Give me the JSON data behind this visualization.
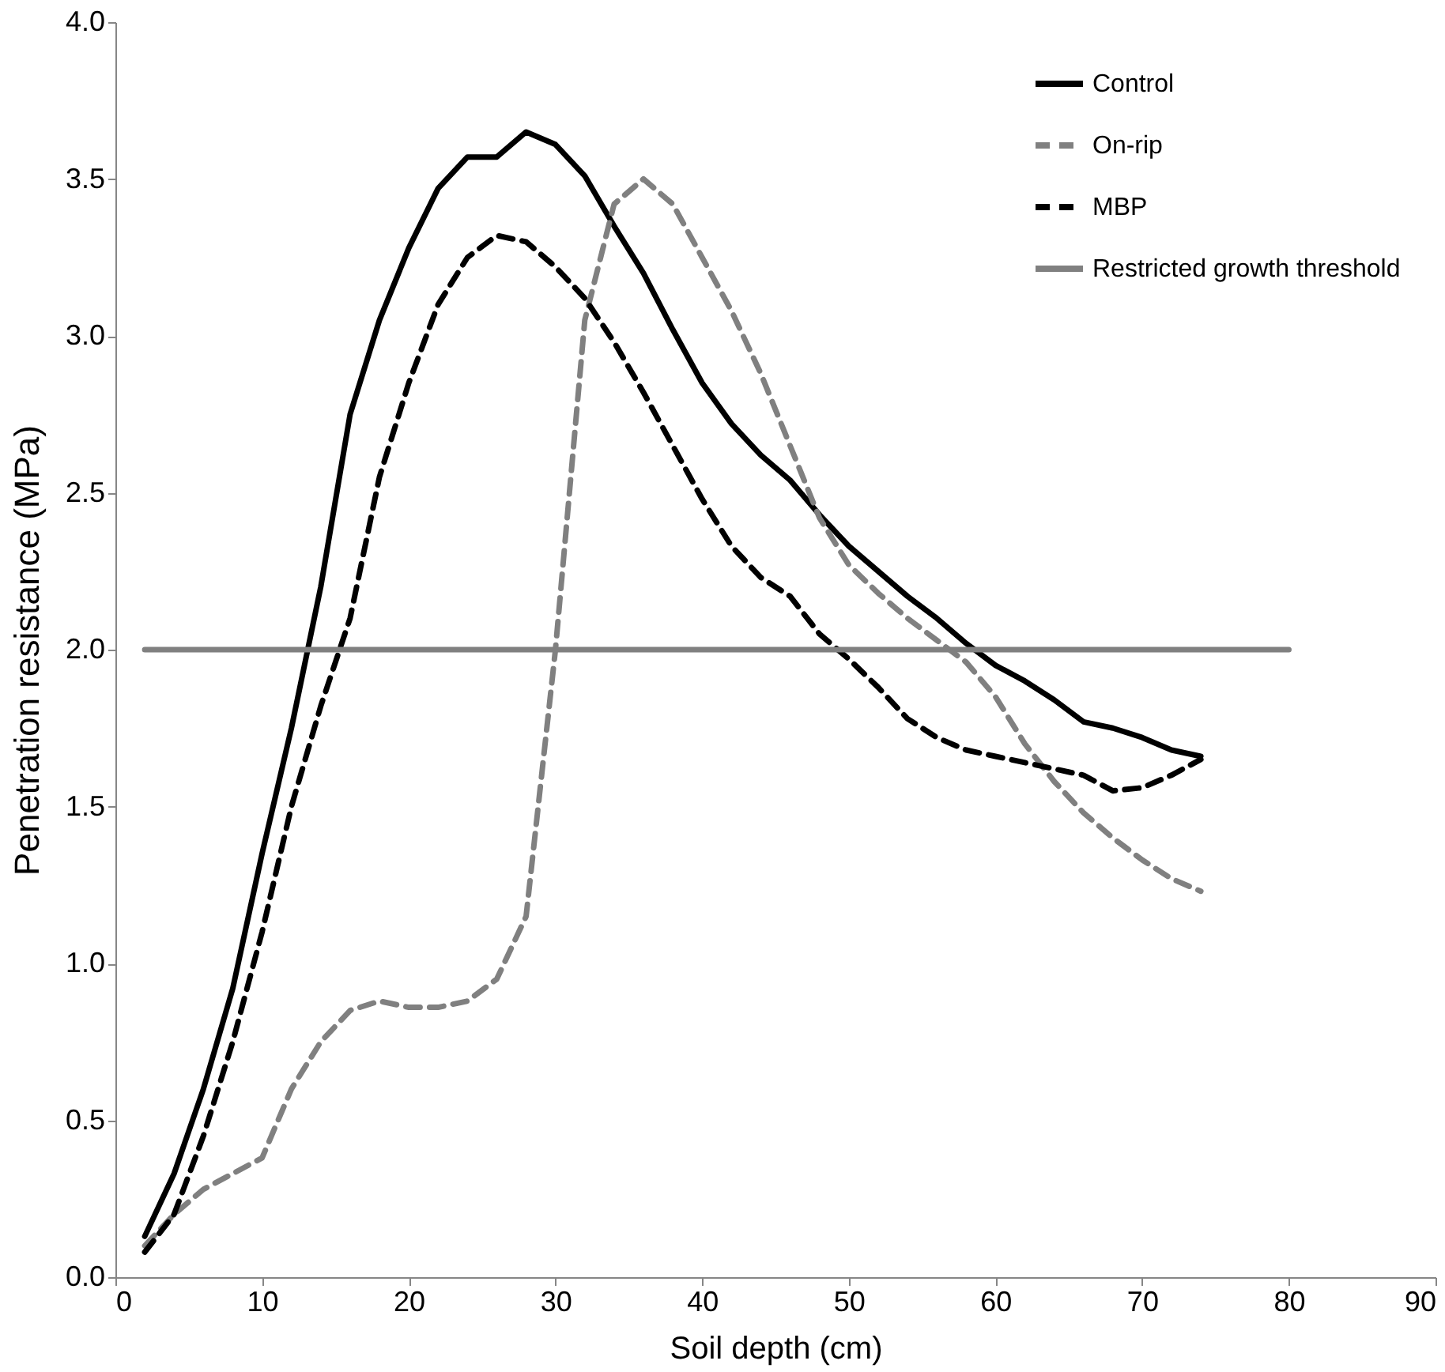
{
  "chart_data": {
    "type": "line",
    "xlabel": "Soil depth (cm)",
    "ylabel": "Penetration resistance (MPa)",
    "x": [
      2,
      4,
      6,
      8,
      10,
      12,
      14,
      16,
      18,
      20,
      22,
      24,
      26,
      28,
      30,
      32,
      34,
      36,
      38,
      40,
      42,
      44,
      46,
      48,
      50,
      52,
      54,
      56,
      58,
      60,
      62,
      64,
      66,
      68,
      70,
      72,
      74
    ],
    "series": [
      {
        "name": "Control",
        "color": "#000000",
        "line_style": "solid",
        "values": [
          0.13,
          0.33,
          0.6,
          0.92,
          1.35,
          1.75,
          2.2,
          2.75,
          3.05,
          3.28,
          3.47,
          3.57,
          3.57,
          3.65,
          3.61,
          3.51,
          3.35,
          3.2,
          3.02,
          2.85,
          2.72,
          2.62,
          2.54,
          2.43,
          2.33,
          2.25,
          2.17,
          2.1,
          2.02,
          1.95,
          1.9,
          1.84,
          1.77,
          1.75,
          1.72,
          1.68,
          1.66
        ]
      },
      {
        "name": "On-rip",
        "color": "#808080",
        "line_style": "dashed",
        "values": [
          0.1,
          0.2,
          0.28,
          0.33,
          0.38,
          0.6,
          0.75,
          0.85,
          0.88,
          0.86,
          0.86,
          0.88,
          0.95,
          1.15,
          2.0,
          3.05,
          3.42,
          3.5,
          3.42,
          3.25,
          3.08,
          2.88,
          2.65,
          2.42,
          2.27,
          2.18,
          2.1,
          2.03,
          1.96,
          1.85,
          1.7,
          1.58,
          1.48,
          1.4,
          1.33,
          1.27,
          1.23
        ]
      },
      {
        "name": "MBP",
        "color": "#000000",
        "line_style": "dashed",
        "values": [
          0.08,
          0.2,
          0.45,
          0.75,
          1.1,
          1.5,
          1.82,
          2.1,
          2.55,
          2.85,
          3.1,
          3.25,
          3.32,
          3.3,
          3.22,
          3.12,
          2.98,
          2.82,
          2.65,
          2.48,
          2.33,
          2.23,
          2.17,
          2.05,
          1.97,
          1.88,
          1.78,
          1.72,
          1.68,
          1.66,
          1.64,
          1.62,
          1.6,
          1.55,
          1.56,
          1.6,
          1.65
        ]
      },
      {
        "name": "Restricted growth threshold",
        "color": "#808080",
        "line_style": "solid",
        "x": [
          2,
          80
        ],
        "values": [
          2,
          2
        ]
      }
    ],
    "xlim": [
      0,
      90
    ],
    "xticks": [
      0,
      10,
      20,
      30,
      40,
      50,
      60,
      70,
      80,
      90
    ],
    "ylim": [
      0,
      4
    ],
    "yticks": [
      {
        "value": 0,
        "label": "0.0"
      },
      {
        "value": 0.5,
        "label": "0.5"
      },
      {
        "value": 1,
        "label": "1.0"
      },
      {
        "value": 1.5,
        "label": "1.5"
      },
      {
        "value": 2,
        "label": "2.0"
      },
      {
        "value": 2.5,
        "label": "2.5"
      },
      {
        "value": 3,
        "label": "3.0"
      },
      {
        "value": 3.5,
        "label": "3.5"
      },
      {
        "value": 4,
        "label": "4.0"
      }
    ],
    "grid": false,
    "legend": "top right",
    "marker": "none"
  }
}
